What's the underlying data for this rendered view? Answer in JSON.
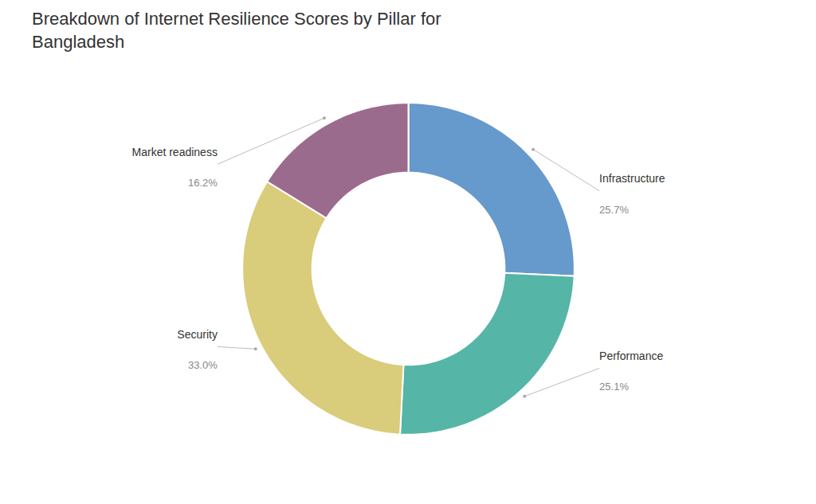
{
  "chart_data": {
    "type": "donut",
    "title": "Breakdown of Internet Resilience Scores by Pillar for\nBangladesh",
    "categories": [
      "Infrastructure",
      "Performance",
      "Security",
      "Market readiness"
    ],
    "values": [
      25.7,
      25.1,
      33.0,
      16.2
    ],
    "value_labels": [
      "25.7%",
      "25.1%",
      "33.0%",
      "16.2%"
    ],
    "colors": [
      "#6699cc",
      "#55b5a6",
      "#d9cc7a",
      "#9b6b8e"
    ],
    "data_labels": true
  }
}
